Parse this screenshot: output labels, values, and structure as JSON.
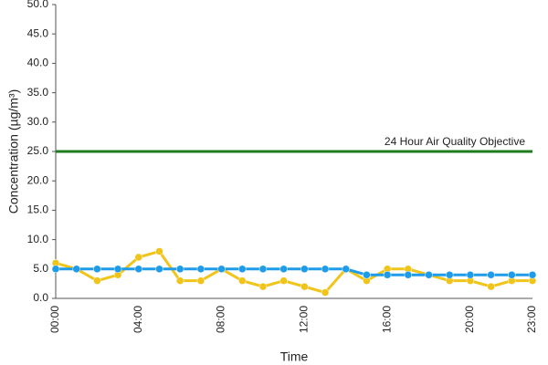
{
  "chart_data": {
    "type": "line",
    "y_label": "Concentration (µg/m³)",
    "x_label": "Time",
    "categories": [
      "00:00",
      null,
      null,
      null,
      "04:00",
      null,
      null,
      null,
      "08:00",
      null,
      null,
      null,
      "12:00",
      null,
      null,
      null,
      "16:00",
      null,
      null,
      null,
      "20:00",
      null,
      null,
      "23:00"
    ],
    "series": [
      {
        "color": "#f0c419",
        "values": [
          6,
          5,
          3,
          4,
          7,
          8,
          3,
          3,
          5,
          3,
          2,
          3,
          2,
          1,
          5,
          3,
          5,
          5,
          4,
          3,
          3,
          2,
          3,
          3
        ]
      },
      {
        "color": "#1e9be9",
        "values": [
          5,
          5,
          5,
          5,
          5,
          5,
          5,
          5,
          5,
          5,
          5,
          5,
          5,
          5,
          5,
          4,
          4,
          4,
          4,
          4,
          4,
          4,
          4,
          4
        ]
      }
    ],
    "reference_line": {
      "value": 25,
      "label": "24 Hour Air Quality Objective",
      "color": "#1e7b1e"
    },
    "ylim": [
      0,
      50
    ],
    "yticks": [
      {
        "value": 0,
        "label": "0.0"
      },
      {
        "value": 5,
        "label": "5.0"
      },
      {
        "value": 10,
        "label": "10.0"
      },
      {
        "value": 15,
        "label": "15.0"
      },
      {
        "value": 20,
        "label": "20.0"
      },
      {
        "value": 25,
        "label": "25.0"
      },
      {
        "value": 30,
        "label": "30.0"
      },
      {
        "value": 35,
        "label": "35.0"
      },
      {
        "value": 40,
        "label": "40.0"
      },
      {
        "value": 45,
        "label": "45.0"
      },
      {
        "value": 50,
        "label": "50.0"
      }
    ]
  }
}
